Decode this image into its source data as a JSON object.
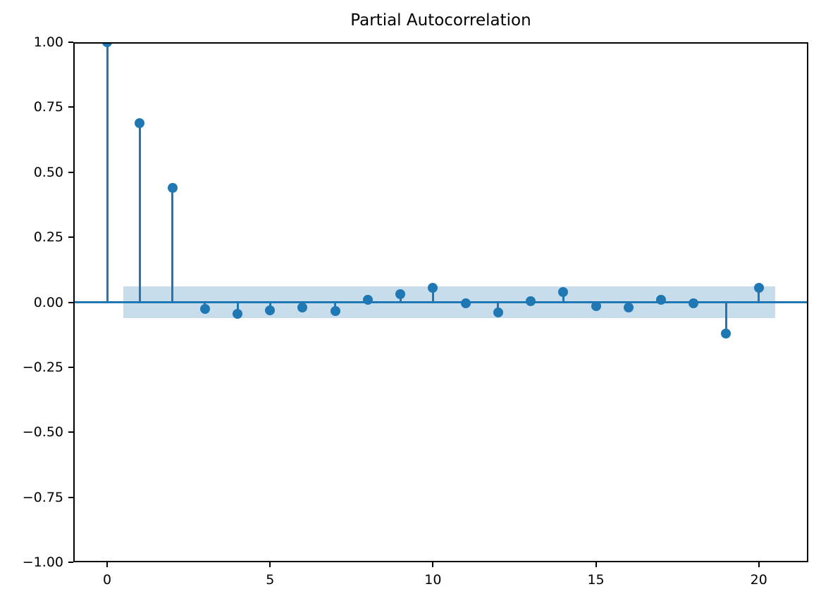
{
  "figure": {
    "background": "#ffffff"
  },
  "chart_data": {
    "type": "stem",
    "title": "Partial Autocorrelation",
    "xlabel": "",
    "ylabel": "",
    "x": [
      0,
      1,
      2,
      3,
      4,
      5,
      6,
      7,
      8,
      9,
      10,
      11,
      12,
      13,
      14,
      15,
      16,
      17,
      18,
      19,
      20
    ],
    "values": [
      1.0,
      0.69,
      0.44,
      -0.025,
      -0.045,
      -0.03,
      -0.02,
      -0.035,
      0.01,
      0.03,
      0.055,
      -0.005,
      -0.04,
      0.005,
      0.04,
      -0.015,
      -0.02,
      0.01,
      -0.005,
      -0.12,
      0.055
    ],
    "confidence_interval": 0.06,
    "band_x_range": [
      0.5,
      20.5
    ],
    "xlim": [
      -1.04,
      21.52
    ],
    "ylim": [
      -1.0,
      1.0
    ],
    "xticks": [
      0,
      5,
      10,
      15,
      20
    ],
    "xtick_labels": [
      "0",
      "5",
      "10",
      "15",
      "20"
    ],
    "yticks": [
      1.0,
      0.75,
      0.5,
      0.25,
      0.0,
      -0.25,
      -0.5,
      -0.75,
      -1.0
    ],
    "ytick_labels": [
      "1.00",
      "0.75",
      "0.50",
      "0.25",
      "0.00",
      "−0.25",
      "−0.50",
      "−0.75",
      "−1.00"
    ],
    "grid": false,
    "legend": "none",
    "colors": {
      "stem": "#1f77b4",
      "marker": "#1f77b4",
      "baseline": "#1f77b4",
      "band": "rgba(31,119,180,0.25)",
      "spine": "#000000",
      "text": "#000000"
    }
  }
}
